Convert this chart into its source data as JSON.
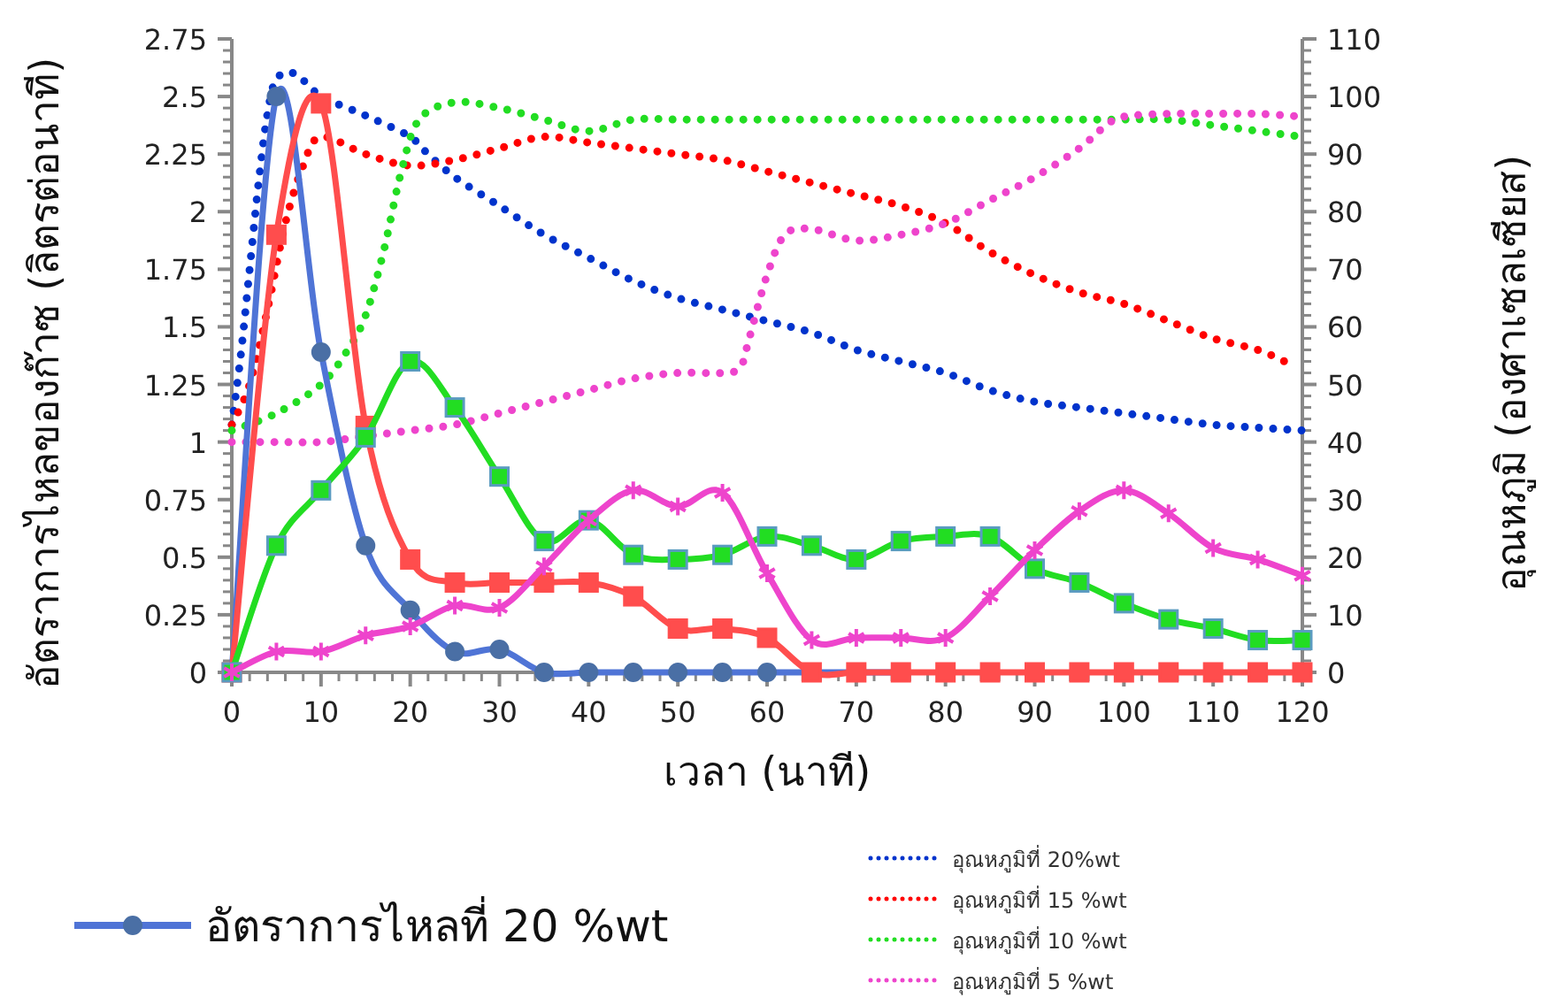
{
  "chart_data": {
    "type": "line",
    "xlabel": "เวลา (นาที)",
    "ylabel": "อัตราการไหลของก๊าซ (ลิตรต่อนาที)",
    "y2label": "อุณหภูมิ (องศาเซลเซียส)",
    "x": [
      0,
      5,
      10,
      15,
      20,
      25,
      30,
      35,
      40,
      45,
      50,
      55,
      60,
      65,
      70,
      75,
      80,
      85,
      90,
      95,
      100,
      105,
      110,
      115,
      120
    ],
    "xlim": [
      0,
      120
    ],
    "xticks": [
      0,
      10,
      20,
      30,
      40,
      50,
      60,
      70,
      80,
      90,
      100,
      110,
      120
    ],
    "ylim": [
      0,
      2.75
    ],
    "yticks": [
      0,
      0.25,
      0.5,
      0.75,
      1,
      1.25,
      1.5,
      1.75,
      2,
      2.25,
      2.5,
      2.75
    ],
    "y2lim": [
      0,
      110
    ],
    "y2ticks": [
      0,
      10,
      20,
      30,
      40,
      50,
      60,
      70,
      80,
      90,
      100,
      110
    ],
    "grid": false,
    "legend": "bottom",
    "series": [
      {
        "name": "อัตราการไหลที่ 20 %wt",
        "color": "#4f74d6",
        "marker": "circle",
        "line_style": "solid",
        "values": [
          0,
          2.5,
          1.39,
          0.55,
          0.27,
          0.09,
          0.1,
          0,
          0,
          0,
          0,
          0,
          0,
          0,
          0,
          0,
          null,
          null,
          null,
          null,
          null,
          null,
          null,
          null,
          null
        ]
      },
      {
        "color": "#ff4d4d",
        "marker": "square",
        "line_style": "solid",
        "values": [
          0,
          1.9,
          2.47,
          1.07,
          0.49,
          0.39,
          0.39,
          0.39,
          0.39,
          0.33,
          0.19,
          0.19,
          0.15,
          0,
          0,
          0,
          0,
          0,
          0,
          0,
          0,
          0,
          0,
          0,
          0
        ]
      },
      {
        "color": "#22dd22",
        "marker": "square",
        "line_style": "solid",
        "values": [
          0,
          0.55,
          0.79,
          1.02,
          1.35,
          1.15,
          0.85,
          0.57,
          0.66,
          0.51,
          0.49,
          0.51,
          0.59,
          0.55,
          0.49,
          0.57,
          0.59,
          0.59,
          0.45,
          0.39,
          0.3,
          0.23,
          0.19,
          0.14,
          0.14
        ]
      },
      {
        "color": "#ee44cc",
        "marker": "cross",
        "line_style": "solid",
        "values": [
          0,
          0.09,
          0.09,
          0.16,
          0.2,
          0.29,
          0.28,
          0.46,
          0.66,
          0.79,
          0.72,
          0.78,
          0.43,
          0.14,
          0.15,
          0.15,
          0.15,
          0.33,
          0.53,
          0.7,
          0.79,
          0.69,
          0.54,
          0.49,
          0.42
        ]
      },
      {
        "name": "อุณหภูมิที่ 20%wt",
        "color": "#0033cc",
        "marker": "none",
        "line_style": "dotted",
        "axis": "y2",
        "x": [
          0,
          1,
          2,
          3,
          4,
          5,
          7,
          10,
          13,
          16,
          20,
          22,
          25,
          30,
          35,
          40,
          45,
          50,
          55,
          60,
          65,
          70,
          75,
          80,
          85,
          90,
          95,
          100,
          105,
          110,
          115,
          120
        ],
        "values": [
          43,
          55,
          70,
          85,
          97,
          103,
          104,
          100,
          98,
          96,
          93,
          90,
          86,
          81,
          76,
          72,
          68,
          65,
          63,
          61,
          59,
          56,
          54,
          52,
          49,
          47,
          46,
          45,
          44,
          43,
          42.5,
          42
        ]
      },
      {
        "name": "อุณหภูมิที่ 15 %wt",
        "color": "#ff0000",
        "marker": "none",
        "line_style": "dotted",
        "axis": "y2",
        "x": [
          0,
          2,
          4,
          6,
          8,
          10,
          15,
          20,
          25,
          30,
          35,
          40,
          45,
          50,
          55,
          60,
          65,
          70,
          75,
          80,
          85,
          90,
          95,
          100,
          105,
          110,
          115,
          118
        ],
        "values": [
          43,
          50,
          63,
          78,
          88,
          93,
          90,
          88,
          89,
          91,
          93,
          92,
          91,
          90,
          89,
          87,
          85,
          83,
          81,
          78,
          73,
          69,
          66,
          64,
          61,
          58,
          56,
          54
        ]
      },
      {
        "name": "อุณหภูมิที่ 10 %wt",
        "color": "#22dd22",
        "marker": "none",
        "line_style": "dotted",
        "axis": "y2",
        "x": [
          0,
          5,
          10,
          13,
          15,
          17,
          19,
          21,
          25,
          30,
          35,
          40,
          45,
          50,
          55,
          60,
          65,
          70,
          75,
          80,
          85,
          90,
          95,
          100,
          105,
          110,
          115,
          120
        ],
        "values": [
          42,
          45,
          50,
          56,
          62,
          73,
          87,
          96,
          99,
          98,
          96,
          94,
          96,
          96,
          96,
          96,
          96,
          96,
          96,
          96,
          96,
          96,
          96,
          96,
          96,
          95,
          94,
          93
        ]
      },
      {
        "name": "อุณหภูมิที่ 5 %wt",
        "color": "#ee44cc",
        "marker": "none",
        "line_style": "dotted",
        "axis": "y2",
        "x": [
          0,
          5,
          10,
          15,
          20,
          25,
          30,
          35,
          40,
          45,
          50,
          55,
          57,
          58,
          60,
          62,
          65,
          70,
          75,
          80,
          85,
          90,
          95,
          98,
          100,
          105,
          110,
          115,
          120
        ],
        "values": [
          40,
          40,
          40,
          41,
          42,
          43,
          45,
          47,
          49,
          51,
          52,
          52,
          53,
          58,
          69,
          76,
          77,
          75,
          76,
          78,
          82,
          86,
          91,
          95,
          96.5,
          97,
          97,
          97,
          96.5
        ]
      }
    ]
  }
}
